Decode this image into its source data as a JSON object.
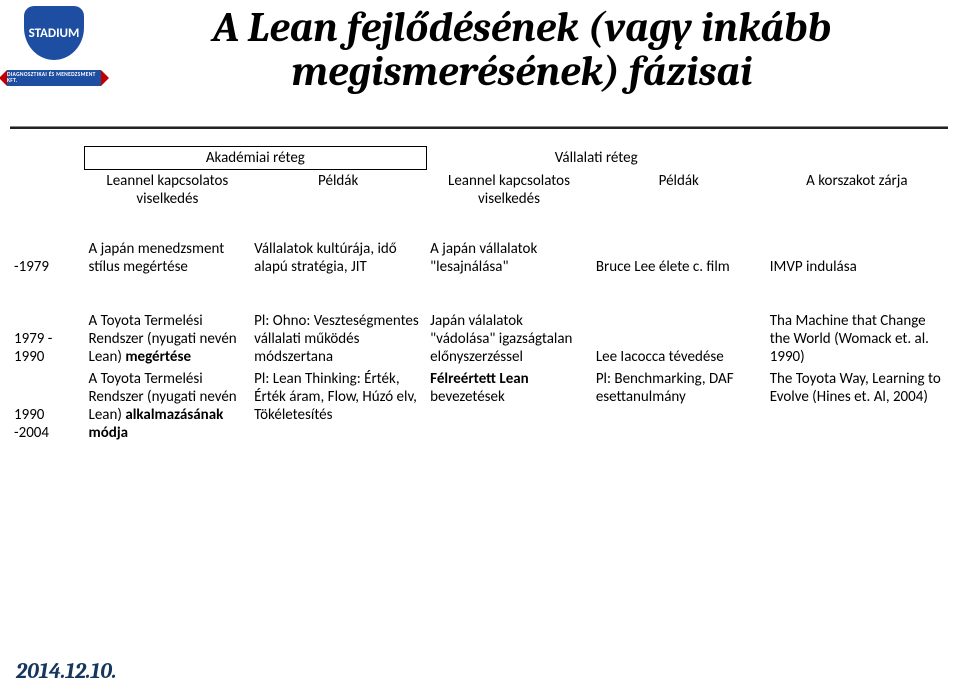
{
  "logo": {
    "text": "STADIUM",
    "strip": "DIAGNOSZTIKAI ÉS MENEDZSMENT KFT."
  },
  "title": {
    "line1": "A Lean fejlődésének (vagy inkább",
    "line2": "megismerésének) fázisai",
    "fontsize": 42
  },
  "headers": {
    "academic": "Akadémiai réteg",
    "corporate": "Vállalati réteg",
    "leannel": "Leannel kapcsolatos viselkedés",
    "peldak": "Példák",
    "korszak": "A korszakot zárja"
  },
  "rows": [
    {
      "year": "-1979",
      "ac_lk": "A japán menedzsment stílus megértése",
      "ac_pe": "Vállalatok kultúrája, idő alapú stratégia, JIT",
      "va_lk": "A japán vállalatok \"lesajnálása\"",
      "va_pe": "Bruce Lee élete c. film",
      "kz": "IMVP indulása"
    },
    {
      "year": "1979 - 1990",
      "ac_lk_pre": "A Toyota Termelési Rendszer (nyugati nevén Lean) ",
      "ac_lk_bold": "megértése",
      "ac_pe": "Pl: Ohno: Veszteségmentes vállalati működés módszertana",
      "va_lk": "Japán válalatok \"vádolása\" igazságtalan előnyszerzéssel",
      "va_pe": "Lee Iacocca tévedése",
      "kz": "Tha Machine that Change the World (Womack et. al. 1990)"
    },
    {
      "year": "1990 -2004",
      "ac_lk_pre": "A Toyota Termelési Rendszer (nyugati nevén Lean) ",
      "ac_lk_bold": "alkalmazásának módja",
      "ac_pe": "Pl: Lean Thinking: Érték, Érték áram, Flow, Húzó elv, Tökéletesítés",
      "va_lk_bold": "Félreértett Lean",
      "va_lk_post": " bevezetések",
      "va_pe": "Pl: Benchmarking, DAF esettanulmány",
      "kz": "The Toyota Way, Learning to Evolve (Hines et. Al, 2004)"
    }
  ],
  "date": "2014.12.10.",
  "colors": {
    "rule": "#222222",
    "date": "#17365d",
    "logo_blue": "#1e4ea1",
    "logo_red": "#c00000"
  },
  "font": {
    "title_family": "Cambria",
    "body_family": "Calibri",
    "body_size": 15,
    "date_size": 22
  }
}
